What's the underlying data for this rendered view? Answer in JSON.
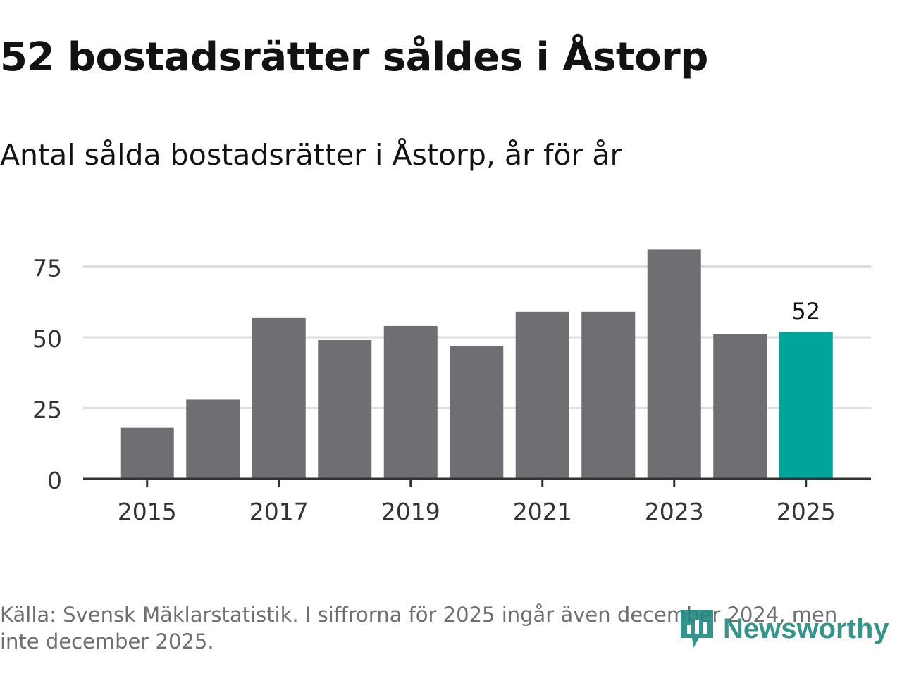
{
  "title": "52 bostadsrätter såldes i Åstorp",
  "subtitle": "Antal sålda bostadsrätter i Åstorp, år för år",
  "source": "Källa: Svensk Mäklarstatistik. I siffrorna för 2025 ingår även december 2024, men inte december 2025.",
  "logo": {
    "text": "Newsworthy",
    "icon": "newsworthy-logo-icon"
  },
  "colors": {
    "bar": "#6f6e73",
    "highlight": "#00a499",
    "grid": "#dddddd",
    "axis": "#333333",
    "text": "#333333"
  },
  "chart_data": {
    "type": "bar",
    "title": "Antal sålda bostadsrätter i Åstorp, år för år",
    "xlabel": "",
    "ylabel": "",
    "categories": [
      "2015",
      "2016",
      "2017",
      "2018",
      "2019",
      "2020",
      "2021",
      "2022",
      "2023",
      "2024",
      "2025"
    ],
    "values": [
      18,
      28,
      57,
      49,
      54,
      47,
      59,
      59,
      81,
      51,
      52
    ],
    "highlight_index": 10,
    "highlight_label": "52",
    "ylim": [
      0,
      85
    ],
    "yticks": [
      0,
      25,
      50,
      75
    ],
    "xtick_labels": [
      "2015",
      "2017",
      "2019",
      "2021",
      "2023",
      "2025"
    ],
    "grid": true
  }
}
